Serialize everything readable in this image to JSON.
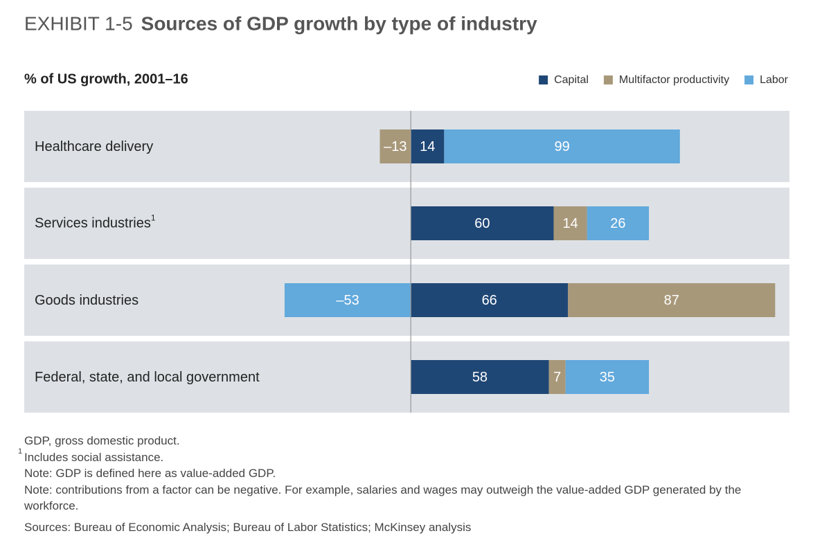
{
  "chart_data": {
    "type": "stacked-bar-horizontal",
    "exhibit": "EXHIBIT 1-5",
    "title": "Sources of GDP growth by type of industry",
    "subtitle": "% of US growth, 2001–16",
    "categories": [
      "Healthcare delivery",
      "Services industries",
      "Goods industries",
      "Federal, state, and local government"
    ],
    "category_markers": [
      null,
      "1",
      null,
      null
    ],
    "series": [
      {
        "name": "Capital",
        "color": "#1f4775",
        "values": [
          14,
          60,
          66,
          58
        ],
        "value_labels": [
          "14",
          "60",
          "66",
          "58"
        ]
      },
      {
        "name": "Multifactor productivity",
        "color": "#a8987a",
        "values": [
          -13,
          14,
          87,
          7
        ],
        "value_labels": [
          "–13",
          "14",
          "87",
          "7"
        ]
      },
      {
        "name": "Labor",
        "color": "#62a9dc",
        "values": [
          99,
          26,
          -53,
          35
        ],
        "value_labels": [
          "99",
          "26",
          "–53",
          "35"
        ]
      }
    ],
    "xlim": [
      -62,
      159
    ],
    "legend": "top-right",
    "notes": [
      {
        "text": "GDP, gross domestic product."
      },
      {
        "marker": "1",
        "text": "Includes social assistance."
      },
      {
        "text": "Note: GDP is defined here as value-added GDP."
      },
      {
        "text": "Note: contributions from a factor can be negative. For example, salaries and wages may outweigh the value-added GDP generated by the workforce."
      },
      {
        "text": "Sources: Bureau of Economic Analysis; Bureau of Labor Statistics; McKinsey analysis"
      }
    ]
  }
}
